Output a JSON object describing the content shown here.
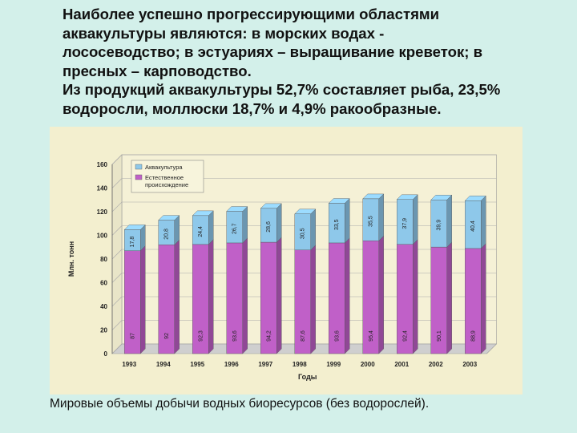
{
  "slide": {
    "heading_lines": [
      "Наиболее успешно прогрессирующими областями",
      "аквакультуры являются: в морских водах -",
      "лососеводство; в эстуариях – выращивание креветок; в",
      "пресных – карповодство.",
      "Из продукций аквакультуры 52,7% составляет рыба, 23,5%",
      "водоросли, моллюски 18,7% и 4,9% ракообразные."
    ],
    "caption": "Мировые объемы добычи водных биоресурсов (без водорослей)."
  },
  "chart_data": {
    "type": "bar",
    "stacked": true,
    "categories": [
      "1993",
      "1994",
      "1995",
      "1996",
      "1997",
      "1998",
      "1999",
      "2000",
      "2001",
      "2002",
      "2003"
    ],
    "series": [
      {
        "name": "Естественное происхождение",
        "color": "#c060c8",
        "values": [
          87,
          92,
          92.3,
          93.6,
          94.2,
          87.6,
          93.6,
          95.4,
          92.4,
          90.1,
          88.9
        ],
        "labels": [
          "87",
          "92",
          "92,3",
          "93,6",
          "94,2",
          "87,6",
          "93,6",
          "95,4",
          "92,4",
          "90,1",
          "88,9"
        ]
      },
      {
        "name": "Аквакультура",
        "color": "#8ec8ea",
        "values": [
          17.8,
          20.8,
          24.4,
          26.7,
          28.6,
          30.5,
          33.5,
          35.5,
          37.9,
          39.9,
          40.4
        ],
        "labels": [
          "17,8",
          "20,8",
          "24,4",
          "26,7",
          "28,6",
          "30,5",
          "33,5",
          "35,5",
          "37,9",
          "39,9",
          "40,4"
        ]
      }
    ],
    "ylabel": "Млн. тонн",
    "xlabel": "Годы",
    "ylim": [
      0,
      160
    ],
    "yticks": [
      "0",
      "20",
      "40",
      "60",
      "80",
      "100",
      "120",
      "140",
      "160"
    ],
    "grid": true,
    "legend": "top-left"
  }
}
